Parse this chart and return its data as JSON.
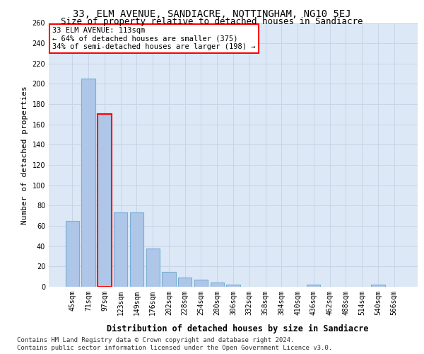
{
  "title": "33, ELM AVENUE, SANDIACRE, NOTTINGHAM, NG10 5EJ",
  "subtitle": "Size of property relative to detached houses in Sandiacre",
  "xlabel_bottom": "Distribution of detached houses by size in Sandiacre",
  "ylabel": "Number of detached properties",
  "categories": [
    "45sqm",
    "71sqm",
    "97sqm",
    "123sqm",
    "149sqm",
    "176sqm",
    "202sqm",
    "228sqm",
    "254sqm",
    "280sqm",
    "306sqm",
    "332sqm",
    "358sqm",
    "384sqm",
    "410sqm",
    "436sqm",
    "462sqm",
    "488sqm",
    "514sqm",
    "540sqm",
    "566sqm"
  ],
  "values": [
    65,
    205,
    170,
    73,
    73,
    38,
    15,
    9,
    7,
    4,
    2,
    0,
    0,
    0,
    0,
    2,
    0,
    0,
    0,
    2,
    0
  ],
  "bar_color": "#aec6e8",
  "bar_edge_color": "#7aaed4",
  "highlight_index": 2,
  "annotation_line1": "33 ELM AVENUE: 113sqm",
  "annotation_line2": "← 64% of detached houses are smaller (375)",
  "annotation_line3": "34% of semi-detached houses are larger (198) →",
  "annotation_box_color": "white",
  "annotation_box_edge_color": "red",
  "grid_color": "#c8d4e8",
  "plot_background": "#dce8f5",
  "ylim_max": 260,
  "yticks": [
    0,
    20,
    40,
    60,
    80,
    100,
    120,
    140,
    160,
    180,
    200,
    220,
    240,
    260
  ],
  "footnote_line1": "Contains HM Land Registry data © Crown copyright and database right 2024.",
  "footnote_line2": "Contains public sector information licensed under the Open Government Licence v3.0.",
  "title_fontsize": 10,
  "subtitle_fontsize": 9,
  "ylabel_fontsize": 8,
  "tick_fontsize": 7,
  "annotation_fontsize": 7.5,
  "footnote_fontsize": 6.5,
  "xlabel_bottom_fontsize": 8.5
}
